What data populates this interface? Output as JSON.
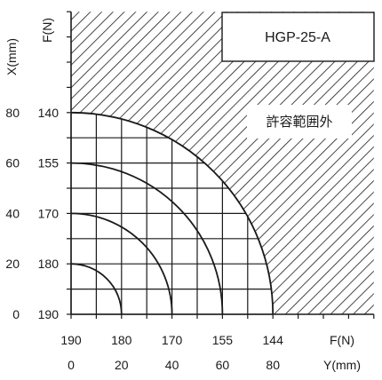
{
  "chart_data": {
    "type": "area",
    "title": "HGP-25-A",
    "region_label": "許容範囲外",
    "x_axis": {
      "label_force": "F(N)",
      "label_length": "Y(mm)",
      "tick_force": [
        "190",
        "180",
        "170",
        "155",
        "144"
      ],
      "tick_length": [
        "0",
        "20",
        "40",
        "60",
        "80"
      ]
    },
    "y_axis": {
      "label_force": "F(N)",
      "label_length": "X(mm)",
      "tick_force": [
        "190",
        "180",
        "170",
        "155",
        "140"
      ],
      "tick_length": [
        "0",
        "20",
        "40",
        "60",
        "80"
      ]
    },
    "allowable_limits": [
      {
        "offset_mm": 0,
        "force_N": 190
      },
      {
        "offset_mm": 20,
        "force_N": 180
      },
      {
        "offset_mm": 40,
        "force_N": 170
      },
      {
        "offset_mm": 60,
        "force_N": 155
      },
      {
        "offset_mm": 80,
        "force_N": 144
      }
    ],
    "y_force_at_80mm": 140,
    "axis_range_mm": [
      0,
      120
    ],
    "grid": true,
    "grid_step_mm": 10
  }
}
